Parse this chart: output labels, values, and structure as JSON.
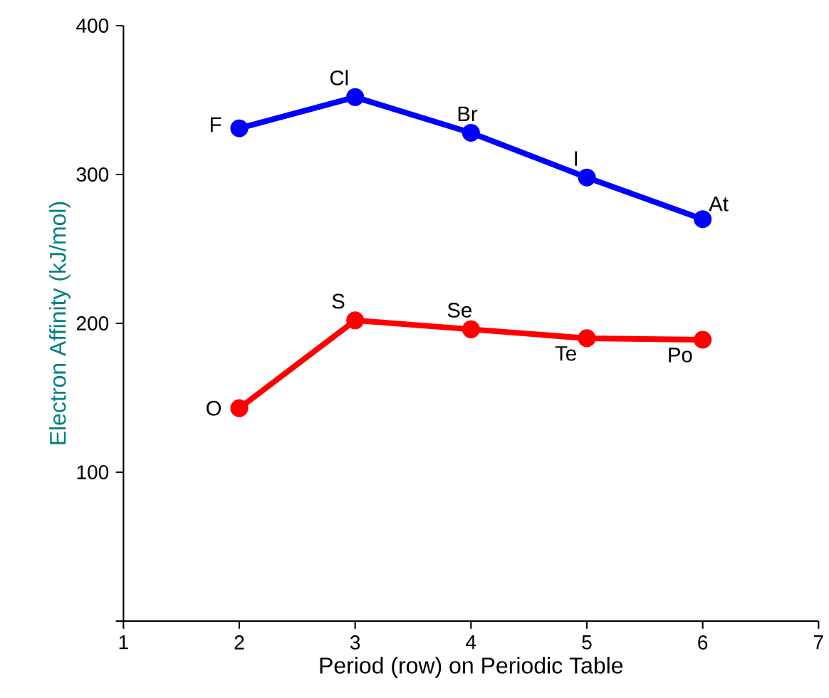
{
  "chart_data": {
    "type": "line",
    "xlabel": "Period (row) on Periodic Table",
    "ylabel": "Electron Affinity (kJ/mol)",
    "x": [
      2,
      3,
      4,
      5,
      6
    ],
    "series": [
      {
        "color": "#0000ff",
        "values": [
          331,
          352,
          328,
          298,
          270
        ]
      },
      {
        "color": "#ff0000",
        "values": [
          143,
          202,
          196,
          190,
          189
        ]
      }
    ],
    "xlim": [
      1,
      7
    ],
    "xticks": [
      1,
      2,
      3,
      4,
      5,
      6,
      7
    ],
    "ylim": [
      0,
      400
    ],
    "yticks": [
      {
        "value": 0,
        "label": null
      },
      100,
      200,
      300,
      400
    ],
    "marker": "circle",
    "line_style": "solid",
    "annotations": [
      {
        "text": "F",
        "x": 2,
        "y": 331
      },
      {
        "text": "Cl",
        "x": 3,
        "y": 352
      },
      {
        "text": "Br",
        "x": 4,
        "y": 328
      },
      {
        "text": "I",
        "x": 5,
        "y": 298
      },
      {
        "text": "At",
        "x": 6,
        "y": 270
      },
      {
        "text": "O",
        "x": 2,
        "y": 143
      },
      {
        "text": "S",
        "x": 3,
        "y": 202
      },
      {
        "text": "Se",
        "x": 4,
        "y": 196
      },
      {
        "text": "Te",
        "x": 5,
        "y": 190
      },
      {
        "text": "Po",
        "x": 6,
        "y": 189
      }
    ]
  }
}
